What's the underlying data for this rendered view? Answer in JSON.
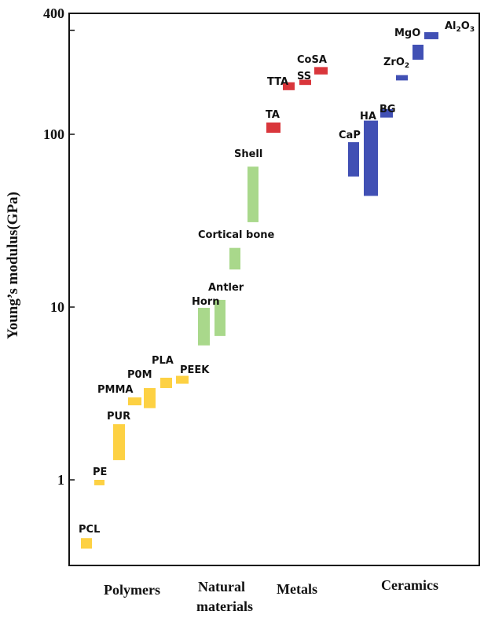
{
  "chart_data": {
    "type": "range-bar",
    "ylabel": "Young’s modulus(GPa)",
    "yscale": "log",
    "ylim": [
      0.35,
      400
    ],
    "yticks": [
      {
        "value": 1,
        "label": "1"
      },
      {
        "value": 10,
        "label": "10"
      },
      {
        "value": 100,
        "label": "100"
      },
      {
        "value": 400,
        "label": "400"
      }
    ],
    "colors": {
      "Polymers": "#FDD143",
      "Natural materials": "#A9D88B",
      "Metals": "#D9363B",
      "Ceramics": "#4150B4"
    },
    "categories": [
      {
        "key": "Polymers",
        "label": "Polymers"
      },
      {
        "key": "Natural materials",
        "label": "Natural materials"
      },
      {
        "key": "Metals",
        "label": "Metals"
      },
      {
        "key": "Ceramics",
        "label": "Ceramics"
      }
    ],
    "materials": [
      {
        "name": "PCL",
        "group": "Polymers",
        "min": 0.4,
        "max": 0.46
      },
      {
        "name": "PE",
        "group": "Polymers",
        "min": 0.93,
        "max": 1.0
      },
      {
        "name": "PUR",
        "group": "Polymers",
        "min": 1.3,
        "max": 2.1
      },
      {
        "name": "PMMA",
        "group": "Polymers",
        "min": 2.7,
        "max": 3.0
      },
      {
        "name": "P0M",
        "group": "Polymers",
        "min": 2.6,
        "max": 3.4
      },
      {
        "name": "PLA",
        "group": "Polymers",
        "min": 3.4,
        "max": 3.9
      },
      {
        "name": "PEEK",
        "group": "Polymers",
        "min": 3.6,
        "max": 4.0
      },
      {
        "name": "Horn",
        "group": "Natural materials",
        "min": 6.0,
        "max": 9.9
      },
      {
        "name": "Antler",
        "group": "Natural materials",
        "min": 6.8,
        "max": 11
      },
      {
        "name": "Cortical bone",
        "group": "Natural materials",
        "min": 16.5,
        "max": 22
      },
      {
        "name": "Shell",
        "group": "Natural materials",
        "min": 31,
        "max": 65
      },
      {
        "name": "TA",
        "group": "Metals",
        "min": 102,
        "max": 117
      },
      {
        "name": "TTA",
        "group": "Metals",
        "min": 180,
        "max": 200
      },
      {
        "name": "SS",
        "group": "Metals",
        "min": 193,
        "max": 207
      },
      {
        "name": "CoSA",
        "group": "Metals",
        "min": 222,
        "max": 245
      },
      {
        "name": "CaP",
        "group": "Ceramics",
        "min": 57,
        "max": 90
      },
      {
        "name": "HA",
        "group": "Ceramics",
        "min": 44,
        "max": 120
      },
      {
        "name": "BG",
        "group": "Ceramics",
        "min": 125,
        "max": 140
      },
      {
        "name": "ZrO",
        "sub": "2",
        "group": "Ceramics",
        "min": 205,
        "max": 220
      },
      {
        "name": "MgO",
        "group": "Ceramics",
        "min": 270,
        "max": 330
      },
      {
        "name": "Al",
        "sub": "2",
        "tail": "O",
        "sub2": "3",
        "group": "Ceramics",
        "min": 355,
        "max": 390
      }
    ]
  }
}
